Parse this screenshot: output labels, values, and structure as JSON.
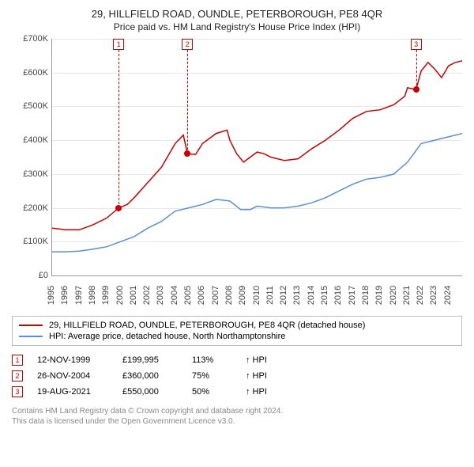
{
  "title": "29, HILLFIELD ROAD, OUNDLE, PETERBOROUGH, PE8 4QR",
  "subtitle": "Price paid vs. HM Land Registry's House Price Index (HPI)",
  "chart": {
    "type": "line",
    "x_range": [
      1995,
      2025
    ],
    "y_range": [
      0,
      700
    ],
    "y_ticks": [
      0,
      100,
      200,
      300,
      400,
      500,
      600,
      700
    ],
    "y_tick_labels": [
      "£0",
      "£100K",
      "£200K",
      "£300K",
      "£400K",
      "£500K",
      "£600K",
      "£700K"
    ],
    "x_ticks": [
      1995,
      1996,
      1997,
      1998,
      1999,
      2000,
      2001,
      2002,
      2003,
      2004,
      2005,
      2006,
      2007,
      2008,
      2009,
      2010,
      2011,
      2012,
      2013,
      2014,
      2015,
      2016,
      2017,
      2018,
      2019,
      2020,
      2021,
      2022,
      2023,
      2024
    ],
    "grid_color": "#e8e8e8",
    "axis_color": "#999999",
    "background_color": "#ffffff",
    "label_fontsize": 11,
    "series": [
      {
        "id": "property",
        "label": "29, HILLFIELD ROAD, OUNDLE, PETERBOROUGH, PE8 4QR (detached house)",
        "color": "#cc0000",
        "line_width": 1.5,
        "data": [
          [
            1995,
            140
          ],
          [
            1996,
            135
          ],
          [
            1997,
            135
          ],
          [
            1998,
            150
          ],
          [
            1999,
            170
          ],
          [
            1999.87,
            200
          ],
          [
            2000.5,
            210
          ],
          [
            2001,
            230
          ],
          [
            2002,
            275
          ],
          [
            2003,
            320
          ],
          [
            2004,
            390
          ],
          [
            2004.6,
            415
          ],
          [
            2004.9,
            360
          ],
          [
            2005.5,
            358
          ],
          [
            2006,
            390
          ],
          [
            2007,
            420
          ],
          [
            2007.8,
            430
          ],
          [
            2008,
            400
          ],
          [
            2008.5,
            360
          ],
          [
            2009,
            335
          ],
          [
            2009.5,
            350
          ],
          [
            2010,
            365
          ],
          [
            2010.5,
            360
          ],
          [
            2011,
            350
          ],
          [
            2012,
            340
          ],
          [
            2013,
            345
          ],
          [
            2014,
            375
          ],
          [
            2015,
            400
          ],
          [
            2016,
            430
          ],
          [
            2017,
            465
          ],
          [
            2018,
            485
          ],
          [
            2019,
            490
          ],
          [
            2020,
            505
          ],
          [
            2020.8,
            530
          ],
          [
            2021,
            555
          ],
          [
            2021.63,
            550
          ],
          [
            2022,
            605
          ],
          [
            2022.5,
            630
          ],
          [
            2023,
            610
          ],
          [
            2023.5,
            585
          ],
          [
            2024,
            620
          ],
          [
            2024.5,
            630
          ],
          [
            2025,
            635
          ]
        ]
      },
      {
        "id": "hpi",
        "label": "HPI: Average price, detached house, North Northamptonshire",
        "color": "#5b8fd6",
        "line_width": 1.5,
        "data": [
          [
            1995,
            70
          ],
          [
            1996,
            70
          ],
          [
            1997,
            72
          ],
          [
            1998,
            78
          ],
          [
            1999,
            85
          ],
          [
            2000,
            100
          ],
          [
            2001,
            115
          ],
          [
            2002,
            140
          ],
          [
            2003,
            160
          ],
          [
            2004,
            190
          ],
          [
            2005,
            200
          ],
          [
            2006,
            210
          ],
          [
            2007,
            225
          ],
          [
            2008,
            220
          ],
          [
            2008.8,
            195
          ],
          [
            2009.5,
            195
          ],
          [
            2010,
            205
          ],
          [
            2011,
            200
          ],
          [
            2012,
            200
          ],
          [
            2013,
            205
          ],
          [
            2014,
            215
          ],
          [
            2015,
            230
          ],
          [
            2016,
            250
          ],
          [
            2017,
            270
          ],
          [
            2018,
            285
          ],
          [
            2019,
            290
          ],
          [
            2020,
            300
          ],
          [
            2021,
            335
          ],
          [
            2022,
            390
          ],
          [
            2023,
            400
          ],
          [
            2024,
            410
          ],
          [
            2025,
            420
          ]
        ]
      }
    ],
    "sales": [
      {
        "idx": "1",
        "year": 1999.87,
        "price": 200,
        "date": "12-NOV-1999",
        "price_label": "£199,995",
        "pct": "113%",
        "dir": "↑ HPI"
      },
      {
        "idx": "2",
        "year": 2004.9,
        "price": 360,
        "date": "26-NOV-2004",
        "price_label": "£360,000",
        "pct": "75%",
        "dir": "↑ HPI"
      },
      {
        "idx": "3",
        "year": 2021.63,
        "price": 550,
        "date": "19-AUG-2021",
        "price_label": "£550,000",
        "pct": "50%",
        "dir": "↑ HPI"
      }
    ]
  },
  "footer": {
    "line1": "Contains HM Land Registry data © Crown copyright and database right 2024.",
    "line2": "This data is licensed under the Open Government Licence v3.0."
  }
}
